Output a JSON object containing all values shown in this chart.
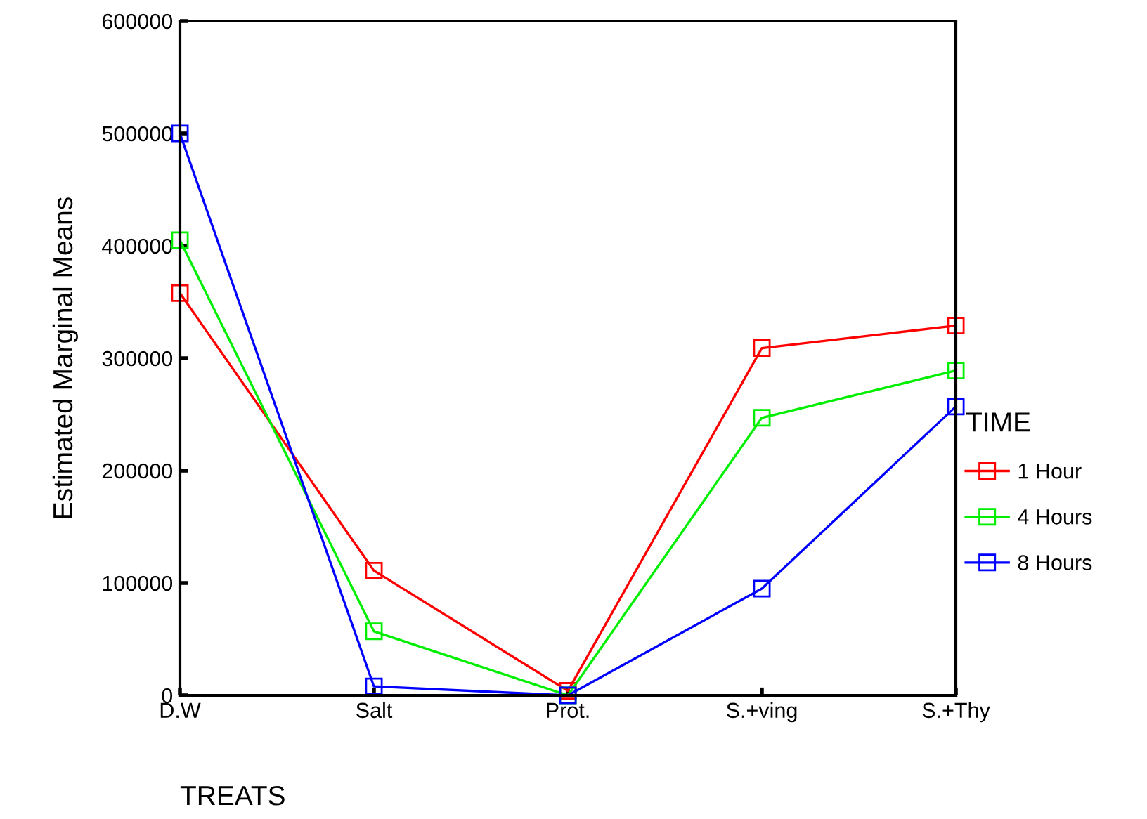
{
  "chart_data": {
    "type": "line",
    "xlabel": "TREATS",
    "ylabel": "Estimated Marginal Means",
    "legend_title": "TIME",
    "categories": [
      "D.W",
      "Salt",
      "Prot.",
      "S.+ving",
      "S.+Thy"
    ],
    "series": [
      {
        "name": "1 Hour",
        "color": "#ff0000",
        "values": [
          358000,
          111000,
          4000,
          309000,
          329000
        ]
      },
      {
        "name": "4 Hours",
        "color": "#00ee00",
        "values": [
          405000,
          57000,
          0,
          247000,
          289000
        ]
      },
      {
        "name": "8 Hours",
        "color": "#0000ff",
        "values": [
          500000,
          8000,
          0,
          95000,
          257000
        ]
      }
    ],
    "ylim": [
      0,
      600000
    ],
    "yticks": [
      0,
      100000,
      200000,
      300000,
      400000,
      500000,
      600000
    ],
    "grid": false,
    "legend": "right",
    "marker": "square",
    "line_style": "solid"
  }
}
